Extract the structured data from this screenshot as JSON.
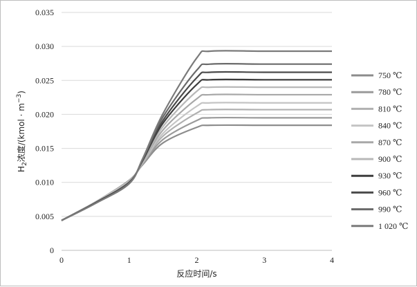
{
  "chart_data": {
    "type": "line",
    "xlabel": "反应时间/s",
    "ylabel_main": "H",
    "ylabel_sub": "2",
    "ylabel_rest": "浓度/(kmol · m",
    "ylabel_sup": "−3",
    "ylabel_end": ")",
    "xlim": [
      0,
      4
    ],
    "ylim": [
      0,
      0.035
    ],
    "x_ticks": [
      0,
      1,
      2,
      3,
      4
    ],
    "x_tick_labels": [
      "0",
      "1",
      "2",
      "3",
      "4"
    ],
    "y_ticks": [
      0,
      0.005,
      0.01,
      0.015,
      0.02,
      0.025,
      0.03,
      0.035
    ],
    "y_tick_labels": [
      "0",
      "0.005",
      "0.010",
      "0.015",
      "0.020",
      "0.025",
      "0.030",
      "0.035"
    ],
    "grid": "horizontal",
    "legend_position": "right",
    "x": [
      0,
      0.5,
      1.0,
      1.2,
      1.5,
      2.0,
      2.2,
      3.0,
      4.0
    ],
    "series": [
      {
        "name": "750 ℃",
        "color": "#8c8c8c",
        "values": [
          0.0044,
          0.0071,
          0.0103,
          0.0126,
          0.0158,
          0.0181,
          0.0184,
          0.0184,
          0.0184
        ]
      },
      {
        "name": "780 ℃",
        "color": "#9a9a9a",
        "values": [
          0.0044,
          0.0071,
          0.0103,
          0.0127,
          0.0163,
          0.0191,
          0.0195,
          0.0195,
          0.0195
        ]
      },
      {
        "name": "810 ℃",
        "color": "#b0b0b0",
        "values": [
          0.0044,
          0.0071,
          0.0102,
          0.0128,
          0.0168,
          0.0202,
          0.0207,
          0.0207,
          0.0207
        ]
      },
      {
        "name": "840 ℃",
        "color": "#c4c4c4",
        "values": [
          0.0044,
          0.0071,
          0.0102,
          0.0129,
          0.0172,
          0.0212,
          0.0217,
          0.0217,
          0.0217
        ]
      },
      {
        "name": "870 ℃",
        "color": "#a8a8a8",
        "values": [
          0.0044,
          0.007,
          0.0101,
          0.013,
          0.0177,
          0.0223,
          0.0229,
          0.0229,
          0.0229
        ]
      },
      {
        "name": "900 ℃",
        "color": "#b8b8b8",
        "values": [
          0.0044,
          0.007,
          0.0101,
          0.0131,
          0.0182,
          0.0234,
          0.024,
          0.024,
          0.024
        ]
      },
      {
        "name": "930 ℃",
        "color": "#3c3c3c",
        "values": [
          0.0044,
          0.007,
          0.01,
          0.0132,
          0.0187,
          0.0244,
          0.0251,
          0.0251,
          0.0251
        ]
      },
      {
        "name": "960 ℃",
        "color": "#4a4a4a",
        "values": [
          0.0044,
          0.007,
          0.01,
          0.0133,
          0.0191,
          0.0254,
          0.0262,
          0.0262,
          0.0262
        ]
      },
      {
        "name": "990 ℃",
        "color": "#6a6a6a",
        "values": [
          0.0044,
          0.0069,
          0.0099,
          0.0134,
          0.0196,
          0.0265,
          0.0274,
          0.0274,
          0.0274
        ]
      },
      {
        "name": "1 020 ℃",
        "color": "#7a7a7a",
        "values": [
          0.0044,
          0.0069,
          0.0098,
          0.0135,
          0.0201,
          0.0283,
          0.0293,
          0.0293,
          0.0293
        ]
      }
    ]
  }
}
